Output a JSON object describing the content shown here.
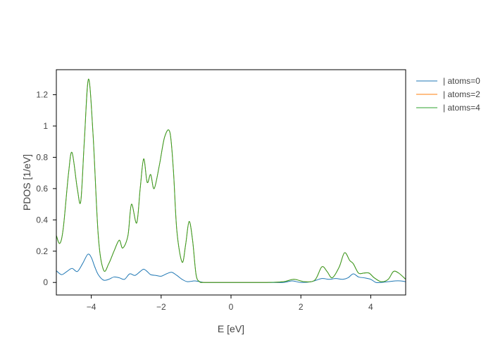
{
  "chart_data": {
    "type": "line",
    "title": "",
    "xlabel": "E [eV]",
    "ylabel": "PDOS [1/eV]",
    "xlim": [
      -5,
      5
    ],
    "ylim": [
      -0.08,
      1.36
    ],
    "xticks": [
      -4,
      -2,
      0,
      2,
      4
    ],
    "xtick_labels": [
      "−4",
      "−2",
      "0",
      "2",
      "4"
    ],
    "yticks": [
      0,
      0.2,
      0.4,
      0.6,
      0.8,
      1,
      1.2
    ],
    "ytick_labels": [
      "0",
      "0.2",
      "0.4",
      "0.6",
      "0.8",
      "1",
      "1.2"
    ],
    "grid": false,
    "legend_position": "right",
    "series": [
      {
        "name": "| atoms=0",
        "color": "#1f77b4",
        "x": [
          -5.0,
          -4.85,
          -4.7,
          -4.55,
          -4.4,
          -4.25,
          -4.1,
          -4.0,
          -3.9,
          -3.8,
          -3.65,
          -3.5,
          -3.35,
          -3.2,
          -3.05,
          -2.9,
          -2.75,
          -2.6,
          -2.5,
          -2.4,
          -2.3,
          -2.15,
          -2.0,
          -1.85,
          -1.7,
          -1.55,
          -1.4,
          -1.25,
          -1.05,
          -0.9,
          -0.75,
          -0.5,
          0.0,
          0.5,
          1.0,
          1.5,
          1.75,
          2.0,
          2.3,
          2.6,
          2.8,
          3.0,
          3.2,
          3.35,
          3.5,
          3.65,
          3.8,
          4.0,
          4.15,
          4.3,
          4.5,
          4.7,
          4.85,
          5.0
        ],
        "values": [
          0.075,
          0.05,
          0.07,
          0.09,
          0.07,
          0.12,
          0.18,
          0.16,
          0.1,
          0.05,
          0.015,
          0.02,
          0.035,
          0.03,
          0.02,
          0.055,
          0.045,
          0.07,
          0.085,
          0.07,
          0.05,
          0.045,
          0.04,
          0.055,
          0.065,
          0.045,
          0.02,
          0.005,
          0.01,
          0.005,
          0.0,
          0.0,
          0.0,
          0.0,
          0.0,
          0.0,
          0.01,
          0.0,
          0.005,
          0.025,
          0.02,
          0.025,
          0.02,
          0.03,
          0.055,
          0.035,
          0.03,
          0.02,
          0.0,
          0.0,
          0.005,
          0.01,
          0.01,
          0.005
        ]
      },
      {
        "name": "| atoms=2",
        "color": "#ff7f0e",
        "x": [
          -5.0,
          -4.9,
          -4.8,
          -4.65,
          -4.55,
          -4.4,
          -4.3,
          -4.2,
          -4.08,
          -3.95,
          -3.8,
          -3.65,
          -3.5,
          -3.35,
          -3.2,
          -3.1,
          -2.95,
          -2.85,
          -2.7,
          -2.6,
          -2.5,
          -2.4,
          -2.3,
          -2.2,
          -2.05,
          -1.9,
          -1.75,
          -1.65,
          -1.55,
          -1.4,
          -1.3,
          -1.2,
          -1.1,
          -1.0,
          -0.9,
          -0.8,
          -0.5,
          0.0,
          0.5,
          1.0,
          1.5,
          1.8,
          2.1,
          2.4,
          2.6,
          2.75,
          2.9,
          3.1,
          3.25,
          3.4,
          3.5,
          3.65,
          3.8,
          3.95,
          4.1,
          4.3,
          4.5,
          4.65,
          4.8,
          5.0
        ],
        "values": [
          0.3,
          0.25,
          0.35,
          0.7,
          0.83,
          0.6,
          0.52,
          0.9,
          1.3,
          0.95,
          0.3,
          0.08,
          0.12,
          0.2,
          0.27,
          0.22,
          0.3,
          0.5,
          0.38,
          0.6,
          0.79,
          0.64,
          0.69,
          0.6,
          0.75,
          0.93,
          0.96,
          0.72,
          0.33,
          0.13,
          0.24,
          0.39,
          0.27,
          0.05,
          0.005,
          0.0,
          0.0,
          0.0,
          0.0,
          0.0,
          0.005,
          0.02,
          0.005,
          0.015,
          0.1,
          0.07,
          0.03,
          0.1,
          0.19,
          0.14,
          0.12,
          0.06,
          0.06,
          0.06,
          0.03,
          0.005,
          0.02,
          0.07,
          0.06,
          0.02
        ]
      },
      {
        "name": "| atoms=4",
        "color": "#2ca02c",
        "x": [
          -5.0,
          -4.9,
          -4.8,
          -4.65,
          -4.55,
          -4.4,
          -4.3,
          -4.2,
          -4.08,
          -3.95,
          -3.8,
          -3.65,
          -3.5,
          -3.35,
          -3.2,
          -3.1,
          -2.95,
          -2.85,
          -2.7,
          -2.6,
          -2.5,
          -2.4,
          -2.3,
          -2.2,
          -2.05,
          -1.9,
          -1.75,
          -1.65,
          -1.55,
          -1.4,
          -1.3,
          -1.2,
          -1.1,
          -1.0,
          -0.9,
          -0.8,
          -0.5,
          0.0,
          0.5,
          1.0,
          1.5,
          1.8,
          2.1,
          2.4,
          2.6,
          2.75,
          2.9,
          3.1,
          3.25,
          3.4,
          3.5,
          3.65,
          3.8,
          3.95,
          4.1,
          4.3,
          4.5,
          4.65,
          4.8,
          5.0
        ],
        "values": [
          0.3,
          0.25,
          0.35,
          0.7,
          0.83,
          0.6,
          0.52,
          0.9,
          1.3,
          0.95,
          0.3,
          0.08,
          0.12,
          0.2,
          0.27,
          0.22,
          0.3,
          0.5,
          0.38,
          0.6,
          0.79,
          0.64,
          0.69,
          0.6,
          0.75,
          0.93,
          0.96,
          0.72,
          0.33,
          0.13,
          0.24,
          0.39,
          0.27,
          0.05,
          0.005,
          0.0,
          0.0,
          0.0,
          0.0,
          0.0,
          0.005,
          0.02,
          0.005,
          0.015,
          0.1,
          0.07,
          0.03,
          0.1,
          0.19,
          0.14,
          0.12,
          0.06,
          0.06,
          0.06,
          0.03,
          0.005,
          0.02,
          0.07,
          0.06,
          0.02
        ]
      }
    ]
  }
}
